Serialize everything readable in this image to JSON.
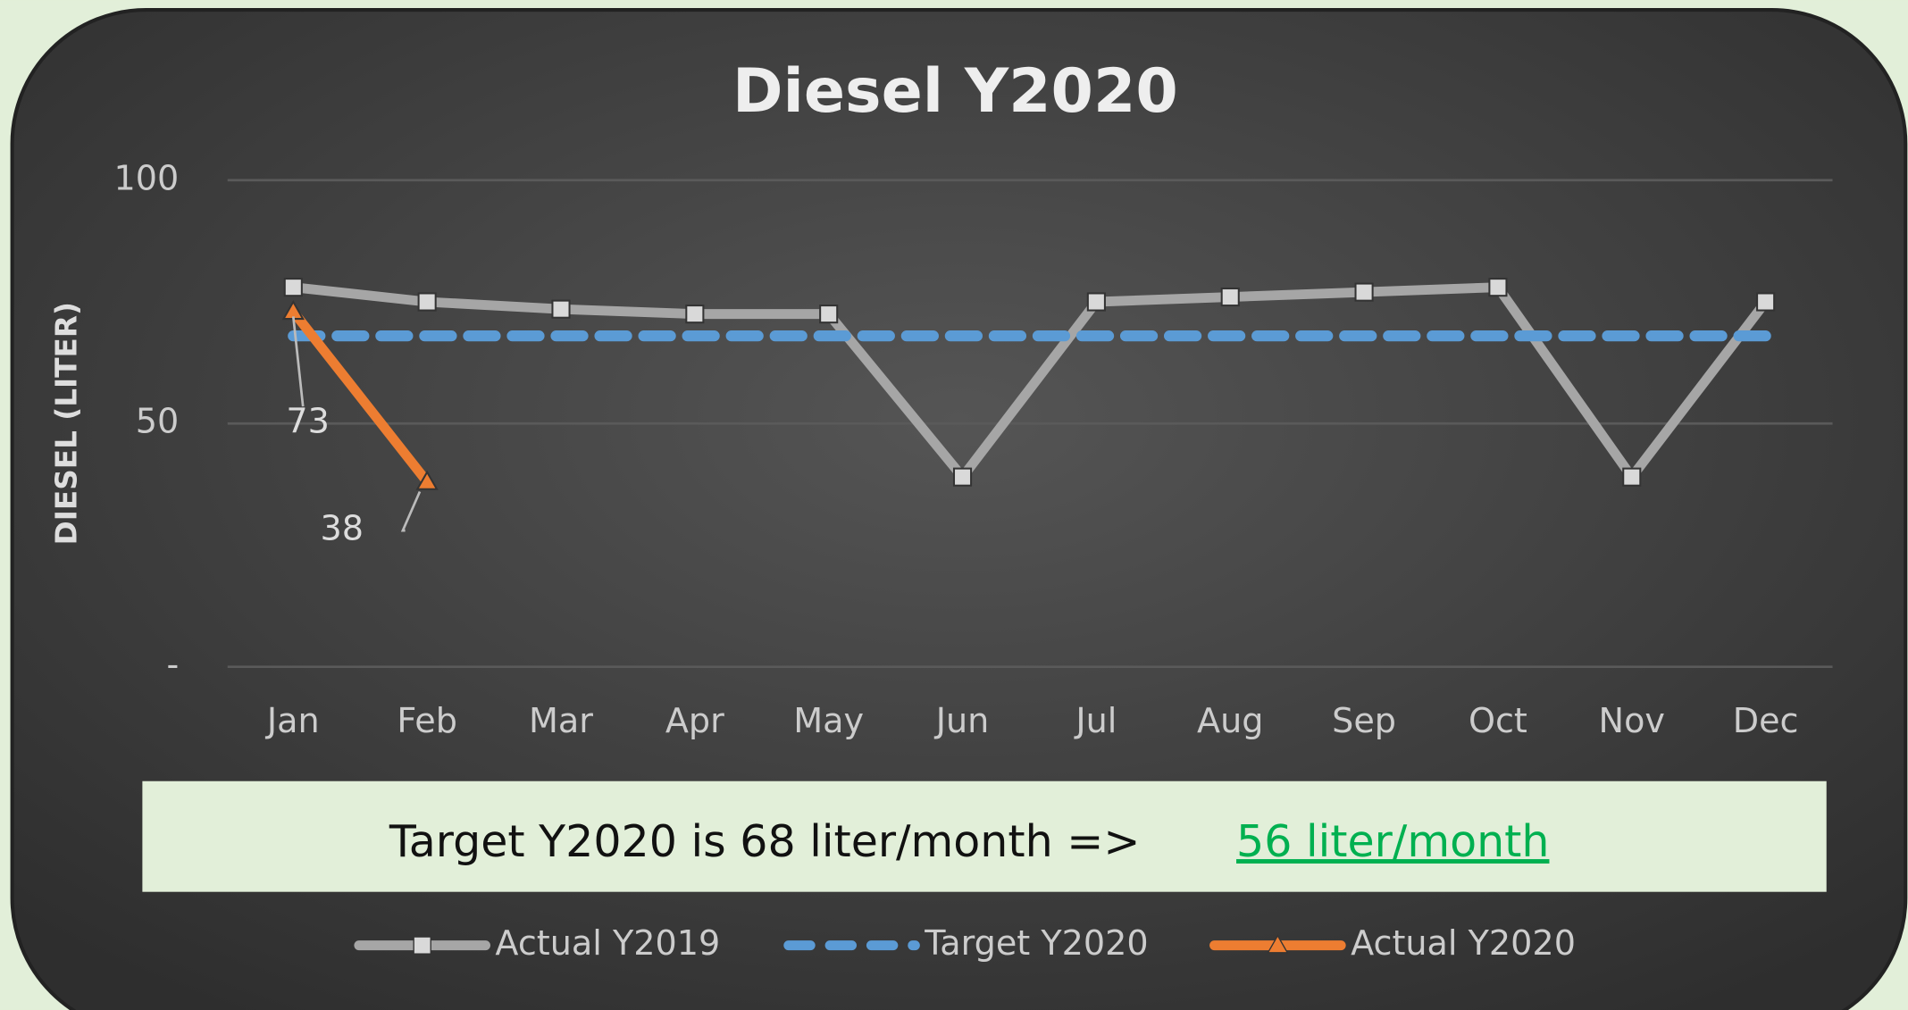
{
  "chart_data": {
    "type": "line",
    "title": "Diesel Y2020",
    "y_label": "DIESEL (LITER)",
    "categories": [
      "Jan",
      "Feb",
      "Mar",
      "Apr",
      "May",
      "Jun",
      "Jul",
      "Aug",
      "Sep",
      "Oct",
      "Nov",
      "Dec"
    ],
    "series": [
      {
        "name": "Actual Y2019",
        "color": "#a6a6a6",
        "marker": "square",
        "values": [
          78,
          75,
          73.5,
          72.5,
          72.5,
          39,
          75,
          76,
          77,
          78,
          39,
          75
        ]
      },
      {
        "name": "Target Y2020",
        "color": "#5b9bd5",
        "dashed": true,
        "values": [
          68,
          68,
          68,
          68,
          68,
          68,
          68,
          68,
          68,
          68,
          68,
          68
        ]
      },
      {
        "name": "Actual Y2020",
        "color": "#ed7d31",
        "marker": "triangle",
        "data_labels": true,
        "values": [
          73,
          38,
          null,
          null,
          null,
          null,
          null,
          null,
          null,
          null,
          null,
          null
        ]
      }
    ],
    "ylim": [
      0,
      100
    ],
    "yticks": [
      {
        "value": 0,
        "label": "-"
      },
      50,
      100
    ],
    "grid": true,
    "annotation": {
      "text": "Target Y2020 is 68 liter/month =>",
      "highlight": "56 liter/month"
    }
  }
}
